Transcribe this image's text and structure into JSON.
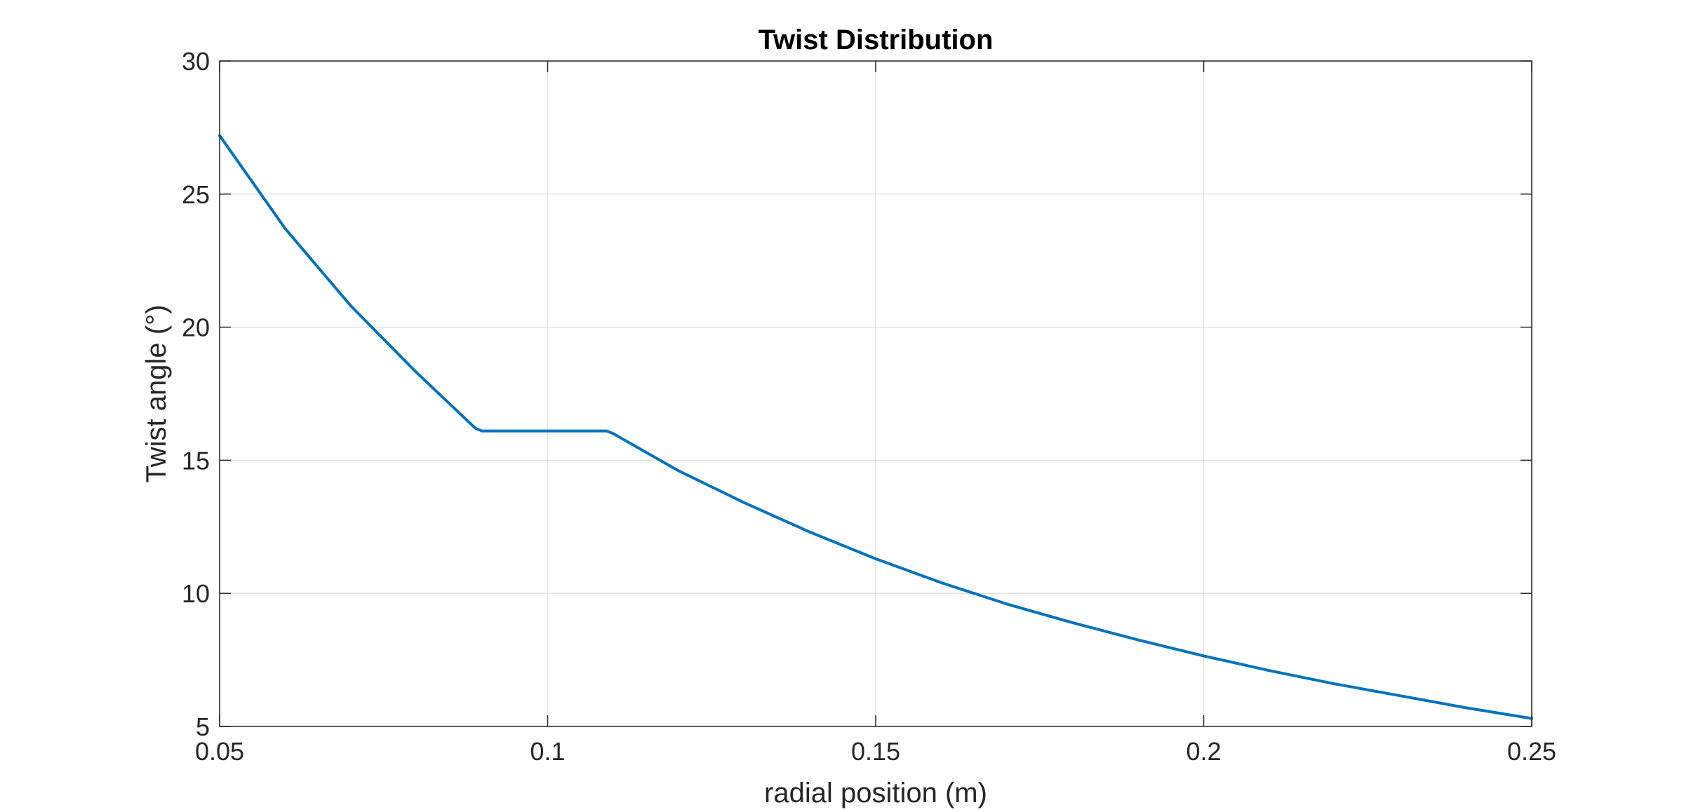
{
  "chart_data": {
    "type": "line",
    "title": "Twist Distribution",
    "xlabel": "radial position (m)",
    "ylabel": "Twist angle (°)",
    "xlim": [
      0.05,
      0.25
    ],
    "ylim": [
      5,
      30
    ],
    "xticks": [
      0.05,
      0.1,
      0.15,
      0.2,
      0.25
    ],
    "xtick_labels": [
      "0.05",
      "0.1",
      "0.15",
      "0.2",
      "0.25"
    ],
    "yticks": [
      5,
      10,
      15,
      20,
      25,
      30
    ],
    "ytick_labels": [
      "5",
      "10",
      "15",
      "20",
      "25",
      "30"
    ],
    "grid": true,
    "legend": false,
    "series": [
      {
        "color": "#0072BD",
        "x": [
          0.05,
          0.06,
          0.07,
          0.08,
          0.089,
          0.09,
          0.1,
          0.109,
          0.11,
          0.12,
          0.13,
          0.14,
          0.15,
          0.16,
          0.17,
          0.18,
          0.19,
          0.2,
          0.21,
          0.22,
          0.23,
          0.24,
          0.25
        ],
        "y": [
          27.2,
          23.7,
          20.8,
          18.3,
          16.2,
          16.1,
          16.1,
          16.1,
          16.0,
          14.6,
          13.4,
          12.3,
          11.3,
          10.4,
          9.6,
          8.9,
          8.25,
          7.65,
          7.1,
          6.6,
          6.15,
          5.7,
          5.3
        ]
      }
    ]
  }
}
